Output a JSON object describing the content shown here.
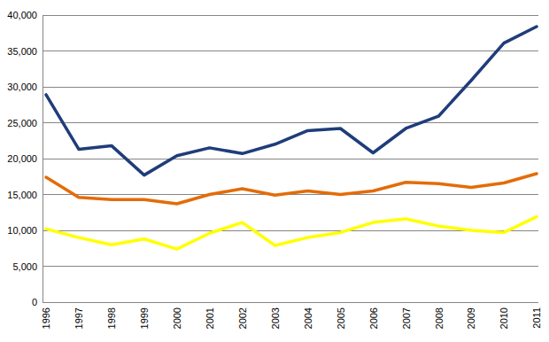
{
  "chart_data": {
    "type": "line",
    "categories": [
      "1996",
      "1997",
      "1998",
      "1999",
      "2000",
      "2001",
      "2002",
      "2003",
      "2004",
      "2005",
      "2006",
      "2007",
      "2008",
      "2009",
      "2010",
      "2011"
    ],
    "series": [
      {
        "color": "#1f3d7a",
        "values": [
          28900,
          21300,
          21800,
          17700,
          20400,
          21500,
          20700,
          22000,
          23900,
          24200,
          20800,
          24200,
          25900,
          30900,
          36100,
          38400
        ]
      },
      {
        "color": "#e36c09",
        "values": [
          17400,
          14600,
          14300,
          14300,
          13700,
          15000,
          15800,
          14900,
          15500,
          15000,
          15500,
          16700,
          16500,
          16000,
          16600,
          17900
        ]
      },
      {
        "color": "#ffff00",
        "values": [
          10200,
          9000,
          8000,
          8800,
          7400,
          9600,
          11100,
          7900,
          9000,
          9700,
          11100,
          11600,
          10600,
          10000,
          9700,
          11900
        ]
      }
    ],
    "ylim": [
      0,
      40000
    ],
    "yticks": [
      0,
      {
        "value": 5000,
        "label": "5,000"
      },
      {
        "value": 10000,
        "label": "10,000"
      },
      {
        "value": 15000,
        "label": "15,000"
      },
      {
        "value": 20000,
        "label": "20,000"
      },
      {
        "value": 25000,
        "label": "25,000"
      },
      {
        "value": 30000,
        "label": "30,000"
      },
      {
        "value": 35000,
        "label": "35,000"
      },
      {
        "value": 40000,
        "label": "40,000"
      }
    ],
    "grid": true
  }
}
